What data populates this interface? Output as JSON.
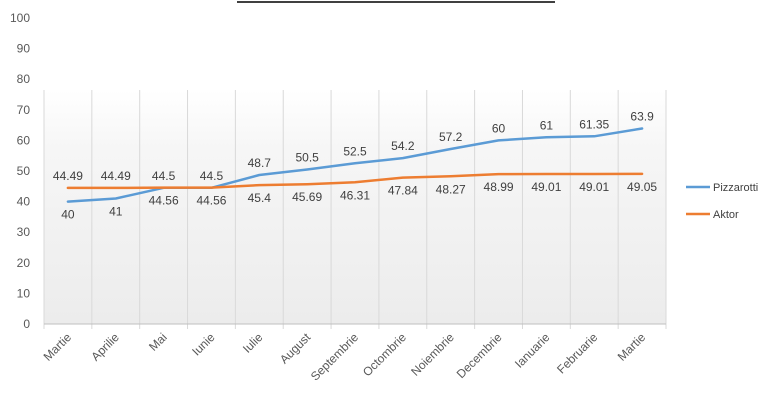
{
  "chart_data": {
    "type": "line",
    "title": "",
    "xlabel": "",
    "ylabel": "",
    "ylim": [
      0,
      100
    ],
    "yticks": [
      0,
      10,
      20,
      30,
      40,
      50,
      60,
      70,
      80,
      90,
      100
    ],
    "grid": "vertical",
    "legend": "right",
    "categories": [
      "Martie",
      "Aprilie",
      "Mai",
      "Iunie",
      "Iulie",
      "August",
      "Septembrie",
      "Octombrie",
      "Noiembrie",
      "Decembrie",
      "Ianuarie",
      "Februarie",
      "Martie"
    ],
    "series": [
      {
        "name": "Pizzarotti",
        "color": "#5B9BD5",
        "values": [
          40,
          41,
          44.5,
          44.5,
          48.7,
          50.5,
          52.5,
          54.2,
          57.2,
          60,
          61,
          61.35,
          63.9
        ],
        "labels": [
          "40",
          "41",
          "44.5",
          "44.5",
          "48.7",
          "50.5",
          "52.5",
          "54.2",
          "57.2",
          "60",
          "61",
          "61.35",
          "63.9"
        ]
      },
      {
        "name": "Aktor",
        "color": "#ED7D31",
        "values": [
          44.49,
          44.49,
          44.56,
          44.56,
          45.4,
          45.69,
          46.31,
          47.84,
          48.27,
          48.99,
          49.01,
          49.01,
          49.05
        ],
        "labels": [
          "44.49",
          "44.49",
          "44.56",
          "44.56",
          "45.4",
          "45.69",
          "46.31",
          "47.84",
          "48.27",
          "48.99",
          "49.01",
          "49.01",
          "49.05"
        ]
      }
    ]
  }
}
